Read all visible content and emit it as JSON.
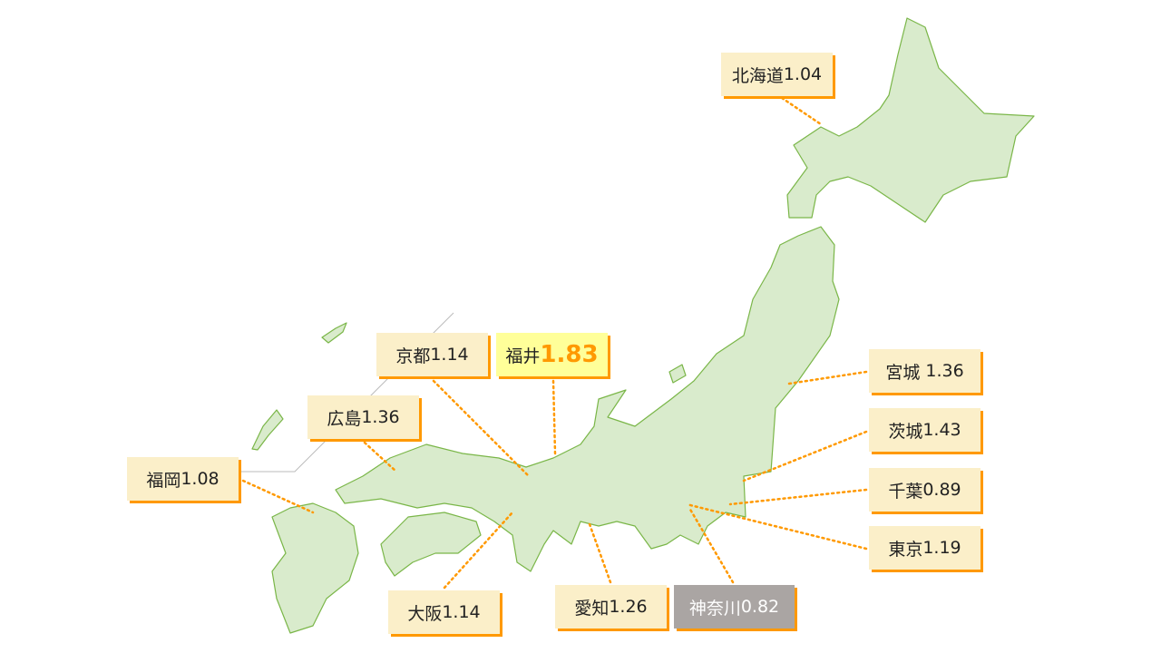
{
  "colors": {
    "land": "#d9ebcc",
    "border": "#7ab648",
    "leader": "#ff9900",
    "label_bg": "#fbefc9",
    "highlight_bg": "#ffff99",
    "low_bg": "#aaa5a3"
  },
  "labels": [
    {
      "id": "hokkaido",
      "name": "北海道",
      "value": "1.04"
    },
    {
      "id": "kyoto",
      "name": "京都",
      "value": "1.14"
    },
    {
      "id": "fukui",
      "name": "福井",
      "value": "1.83",
      "highlight": "max"
    },
    {
      "id": "hiroshima",
      "name": "広島",
      "value": "1.36"
    },
    {
      "id": "fukuoka",
      "name": "福岡",
      "value": "1.08"
    },
    {
      "id": "miyagi",
      "name": "宮城 ",
      "value": "1.36"
    },
    {
      "id": "ibaraki",
      "name": "茨城",
      "value": "1.43"
    },
    {
      "id": "chiba",
      "name": "千葉",
      "value": "0.89"
    },
    {
      "id": "tokyo",
      "name": "東京",
      "value": "1.19"
    },
    {
      "id": "kanagawa",
      "name": "神奈川",
      "value": "0.82",
      "highlight": "min"
    },
    {
      "id": "aichi",
      "name": "愛知",
      "value": "1.26"
    },
    {
      "id": "osaka",
      "name": "大阪",
      "value": "1.14"
    }
  ]
}
